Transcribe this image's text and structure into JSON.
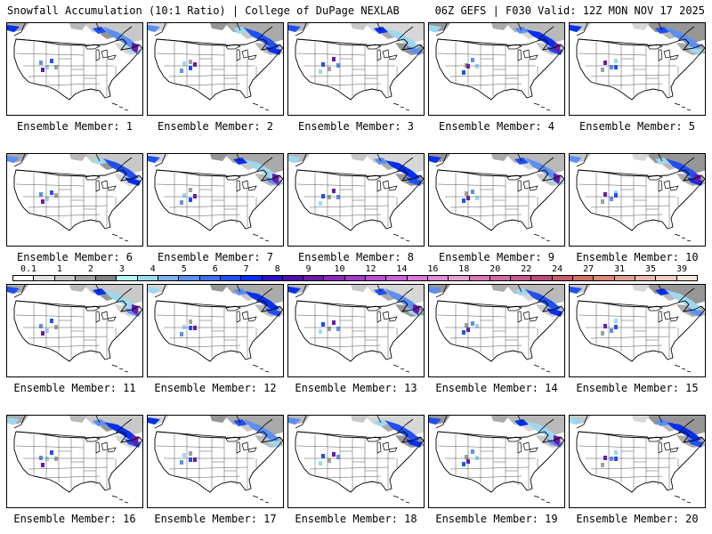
{
  "header": {
    "title_left": "Snowfall Accumulation (10:1 Ratio) | College of DuPage NEXLAB",
    "title_right": "06Z GEFS | F030 Valid: 12Z MON NOV 17 2025"
  },
  "colorbar": {
    "labels": [
      "0.1",
      "1",
      "2",
      "3",
      "4",
      "5",
      "6",
      "7",
      "8",
      "9",
      "10",
      "12",
      "14",
      "16",
      "18",
      "20",
      "22",
      "24",
      "27",
      "31",
      "35",
      "39"
    ],
    "colors": [
      "#ffffff",
      "#e0e0e0",
      "#c8c8c8",
      "#a0a0a0",
      "#808080",
      "#b7f0f7",
      "#9ed8f0",
      "#7fb0ef",
      "#5d8ff0",
      "#3f6ff0",
      "#2050f0",
      "#0530ee",
      "#2a10c8",
      "#4d0fb0",
      "#6a1aa8",
      "#8a28b8",
      "#a13cc8",
      "#b850d0",
      "#c864d8",
      "#d878d8",
      "#e08cd6",
      "#e0a0d0",
      "#d878b8",
      "#d06aa4",
      "#c85a90",
      "#c04a7c",
      "#c85a6c",
      "#d07068",
      "#d88878",
      "#e0a090",
      "#e8b8a8",
      "#f0ccc0",
      "#f8e4d8"
    ]
  },
  "members": [
    {
      "label": "Ensemble Member: 1"
    },
    {
      "label": "Ensemble Member: 2"
    },
    {
      "label": "Ensemble Member: 3"
    },
    {
      "label": "Ensemble Member: 4"
    },
    {
      "label": "Ensemble Member: 5"
    },
    {
      "label": "Ensemble Member: 6"
    },
    {
      "label": "Ensemble Member: 7"
    },
    {
      "label": "Ensemble Member: 8"
    },
    {
      "label": "Ensemble Member: 9"
    },
    {
      "label": "Ensemble Member: 10"
    },
    {
      "label": "Ensemble Member: 11"
    },
    {
      "label": "Ensemble Member: 12"
    },
    {
      "label": "Ensemble Member: 13"
    },
    {
      "label": "Ensemble Member: 14"
    },
    {
      "label": "Ensemble Member: 15"
    },
    {
      "label": "Ensemble Member: 16"
    },
    {
      "label": "Ensemble Member: 17"
    },
    {
      "label": "Ensemble Member: 18"
    },
    {
      "label": "Ensemble Member: 19"
    },
    {
      "label": "Ensemble Member: 20"
    }
  ]
}
